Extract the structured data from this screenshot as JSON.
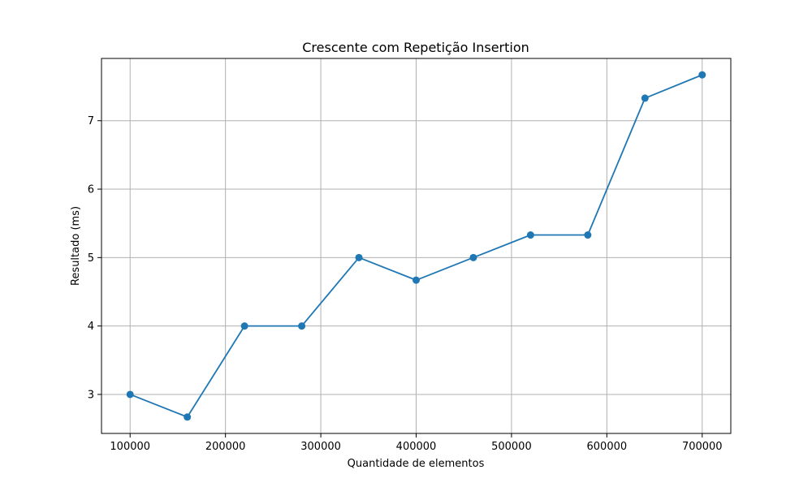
{
  "chart_data": {
    "type": "line",
    "title": "Crescente com Repetição Insertion",
    "xlabel": "Quantidade de elementos",
    "ylabel": "Resultado (ms)",
    "x": [
      100000,
      160000,
      220000,
      280000,
      340000,
      400000,
      460000,
      520000,
      580000,
      640000,
      700000
    ],
    "series": [
      {
        "values": [
          3.0,
          2.67,
          4.0,
          4.0,
          5.0,
          4.67,
          5.0,
          5.33,
          5.33,
          7.33,
          7.67
        ],
        "color": "#1f77b4",
        "marker": "circle"
      }
    ],
    "xlim": [
      70000,
      730000
    ],
    "ylim": [
      2.43,
      7.91
    ],
    "xticks": [
      100000,
      200000,
      300000,
      400000,
      500000,
      600000,
      700000
    ],
    "xtick_labels": [
      "100000",
      "200000",
      "300000",
      "400000",
      "500000",
      "600000",
      "700000"
    ],
    "yticks": [
      3,
      4,
      5,
      6,
      7
    ],
    "ytick_labels": [
      "3",
      "4",
      "5",
      "6",
      "7"
    ],
    "grid": true
  }
}
